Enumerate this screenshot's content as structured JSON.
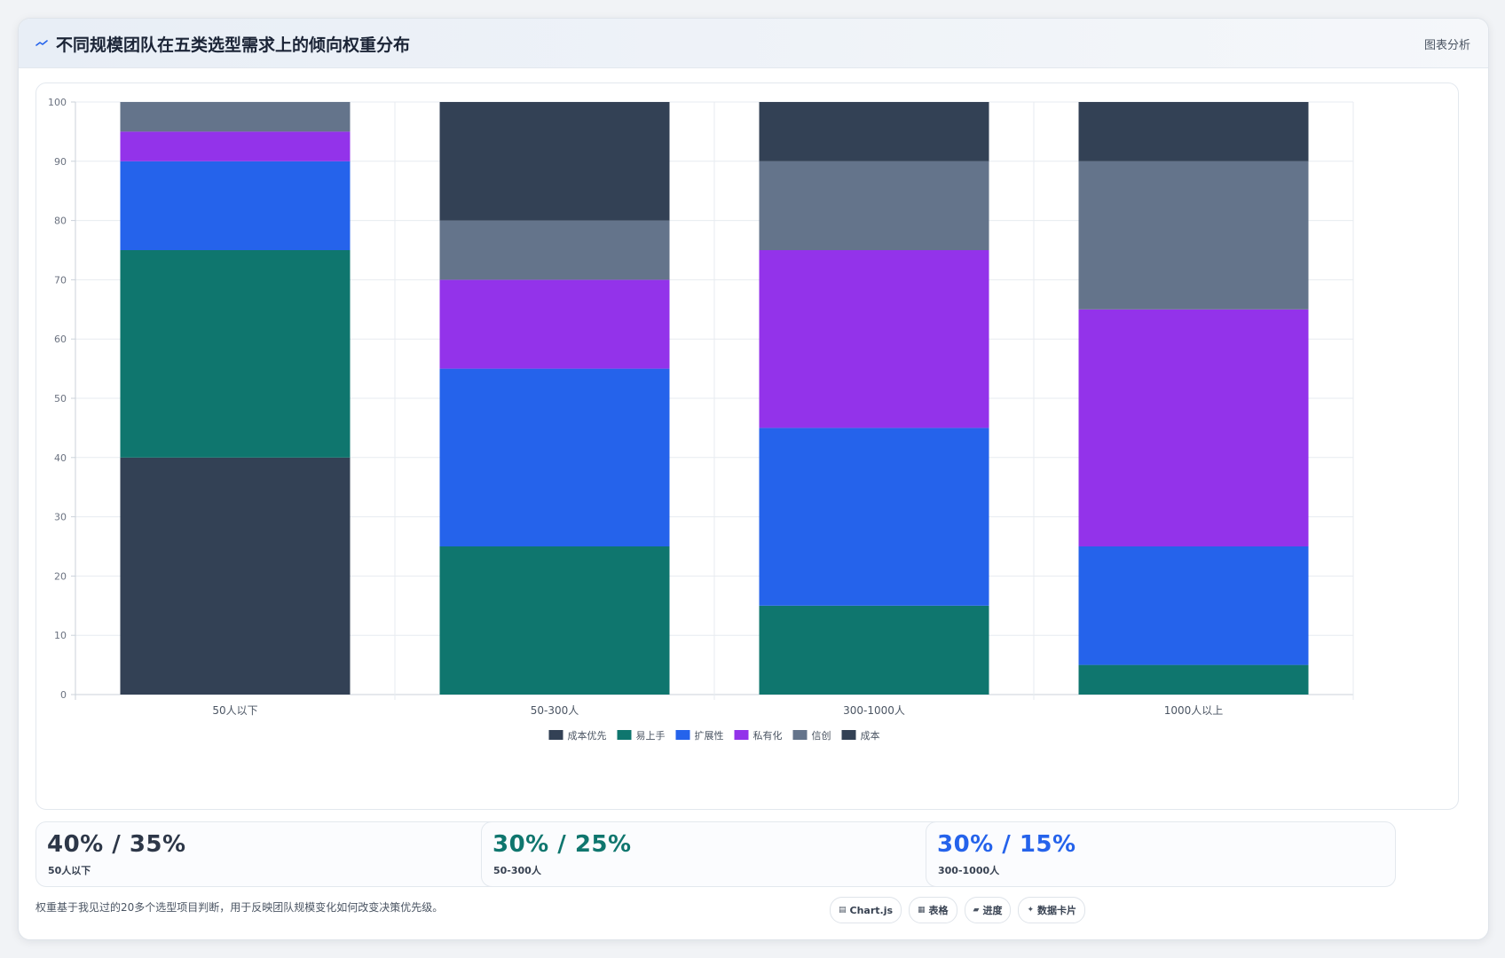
{
  "header": {
    "icon": "trend-line-icon",
    "title": "不同规模团队在五类选型需求上的倾向权重分布",
    "action_label": "图表分析"
  },
  "chart_data": {
    "type": "bar",
    "stacked": true,
    "categories": [
      "50人以下",
      "50-300人",
      "300-1000人",
      "1000人以上"
    ],
    "series": [
      {
        "name": "成本优先",
        "color": "#334155",
        "values": [
          40,
          0,
          0,
          0
        ]
      },
      {
        "name": "易上手",
        "color": "#0f766e",
        "values": [
          35,
          25,
          15,
          5
        ]
      },
      {
        "name": "扩展性",
        "color": "#2563eb",
        "values": [
          15,
          30,
          30,
          20
        ]
      },
      {
        "name": "私有化",
        "color": "#9333ea",
        "values": [
          5,
          15,
          30,
          40
        ]
      },
      {
        "name": "信创",
        "color": "#64748b",
        "values": [
          5,
          10,
          15,
          25
        ]
      },
      {
        "name": "成本",
        "color": "#334155",
        "values": [
          0,
          20,
          10,
          10
        ]
      }
    ],
    "ylim": [
      0,
      100
    ],
    "yticks": [
      0,
      10,
      20,
      30,
      40,
      50,
      60,
      70,
      80,
      90,
      100
    ],
    "grid": true,
    "legend": "bottom-center"
  },
  "stats": [
    {
      "value": "40% / 35%",
      "label": "50人以下",
      "color": "#2d3748"
    },
    {
      "value": "30% / 25%",
      "label": "50-300人",
      "color": "#0f766e"
    },
    {
      "value": "30% / 15%",
      "label": "300-1000人",
      "color": "#2563eb"
    }
  ],
  "footnote": "权重基于我见过的20多个选型项目判断，用于反映团队规模变化如何改变决策优先级。",
  "chips": [
    {
      "icon": "chart-icon",
      "glyph": "▤",
      "label": "Chart.js"
    },
    {
      "icon": "table-icon",
      "glyph": "▦",
      "label": "表格"
    },
    {
      "icon": "progress-icon",
      "glyph": "▰",
      "label": "进度"
    },
    {
      "icon": "sparkle-icon",
      "glyph": "✦",
      "label": "数据卡片"
    }
  ]
}
